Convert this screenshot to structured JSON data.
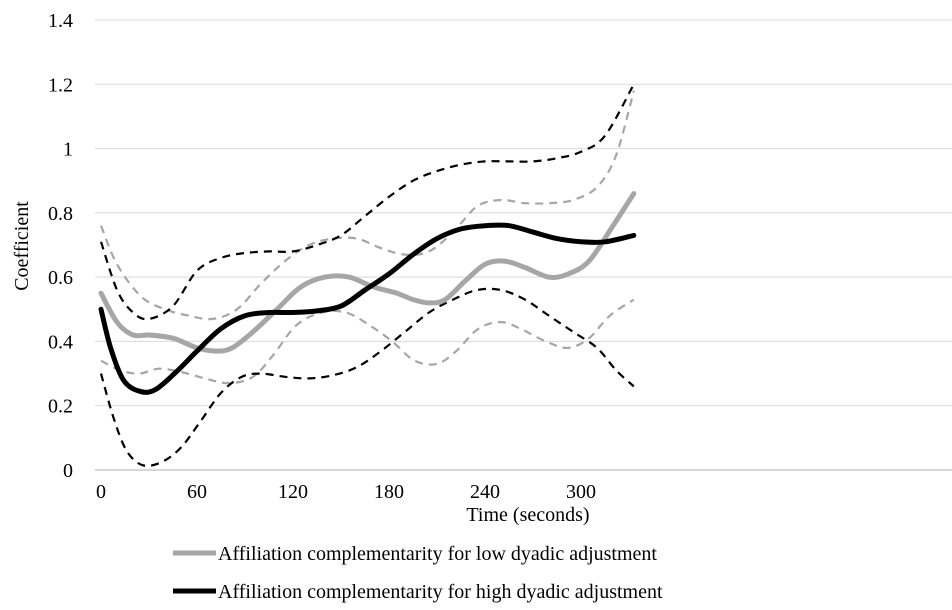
{
  "chart_data": {
    "type": "line",
    "xlabel": "Time (seconds)",
    "ylabel": "Coefficient",
    "xlim": [
      0,
      330
    ],
    "ylim": [
      0,
      1.4
    ],
    "x_ticks": [
      "0",
      "60",
      "120",
      "180",
      "240",
      "300"
    ],
    "y_ticks": [
      "0",
      "0.2",
      "0.4",
      "0.6",
      "0.8",
      "1",
      "1.2",
      "1.4"
    ],
    "grid": "horizontal",
    "legend_position": "bottom",
    "series": [
      {
        "name": "Affiliation complementarity for low dyadic adjustment",
        "color": "#a6a6a6",
        "style": "solid",
        "role": "estimate",
        "points": [
          [
            0,
            0.55
          ],
          [
            10,
            0.46
          ],
          [
            20,
            0.42
          ],
          [
            30,
            0.42
          ],
          [
            45,
            0.41
          ],
          [
            60,
            0.38
          ],
          [
            72,
            0.37
          ],
          [
            82,
            0.38
          ],
          [
            95,
            0.43
          ],
          [
            110,
            0.5
          ],
          [
            125,
            0.57
          ],
          [
            140,
            0.6
          ],
          [
            155,
            0.6
          ],
          [
            170,
            0.57
          ],
          [
            185,
            0.55
          ],
          [
            195,
            0.53
          ],
          [
            205,
            0.52
          ],
          [
            215,
            0.53
          ],
          [
            228,
            0.59
          ],
          [
            240,
            0.64
          ],
          [
            252,
            0.65
          ],
          [
            265,
            0.63
          ],
          [
            280,
            0.6
          ],
          [
            292,
            0.61
          ],
          [
            305,
            0.65
          ],
          [
            320,
            0.76
          ],
          [
            333,
            0.86
          ]
        ]
      },
      {
        "name": "Affiliation complementarity for high dyadic adjustment",
        "color": "#000000",
        "style": "solid",
        "role": "estimate",
        "points": [
          [
            0,
            0.5
          ],
          [
            6,
            0.38
          ],
          [
            14,
            0.28
          ],
          [
            24,
            0.245
          ],
          [
            34,
            0.25
          ],
          [
            48,
            0.31
          ],
          [
            60,
            0.37
          ],
          [
            75,
            0.44
          ],
          [
            90,
            0.48
          ],
          [
            105,
            0.49
          ],
          [
            120,
            0.49
          ],
          [
            135,
            0.495
          ],
          [
            150,
            0.51
          ],
          [
            165,
            0.56
          ],
          [
            180,
            0.61
          ],
          [
            195,
            0.67
          ],
          [
            210,
            0.72
          ],
          [
            225,
            0.75
          ],
          [
            240,
            0.76
          ],
          [
            255,
            0.76
          ],
          [
            270,
            0.74
          ],
          [
            285,
            0.72
          ],
          [
            300,
            0.71
          ],
          [
            315,
            0.71
          ],
          [
            333,
            0.73
          ]
        ]
      },
      {
        "name": "",
        "color": "#a6a6a6",
        "style": "dashed",
        "role": "low upper bound",
        "points": [
          [
            0,
            0.76
          ],
          [
            10,
            0.64
          ],
          [
            25,
            0.54
          ],
          [
            40,
            0.5
          ],
          [
            55,
            0.48
          ],
          [
            70,
            0.47
          ],
          [
            85,
            0.5
          ],
          [
            100,
            0.58
          ],
          [
            115,
            0.65
          ],
          [
            130,
            0.7
          ],
          [
            145,
            0.72
          ],
          [
            160,
            0.72
          ],
          [
            175,
            0.69
          ],
          [
            190,
            0.67
          ],
          [
            205,
            0.68
          ],
          [
            220,
            0.74
          ],
          [
            235,
            0.82
          ],
          [
            250,
            0.84
          ],
          [
            265,
            0.83
          ],
          [
            280,
            0.83
          ],
          [
            295,
            0.84
          ],
          [
            310,
            0.88
          ],
          [
            322,
            0.98
          ],
          [
            333,
            1.18
          ]
        ]
      },
      {
        "name": "",
        "color": "#a6a6a6",
        "style": "dashed",
        "role": "low lower bound",
        "points": [
          [
            0,
            0.34
          ],
          [
            12,
            0.31
          ],
          [
            24,
            0.3
          ],
          [
            36,
            0.315
          ],
          [
            50,
            0.305
          ],
          [
            65,
            0.285
          ],
          [
            80,
            0.27
          ],
          [
            95,
            0.29
          ],
          [
            108,
            0.36
          ],
          [
            122,
            0.45
          ],
          [
            138,
            0.49
          ],
          [
            153,
            0.49
          ],
          [
            168,
            0.45
          ],
          [
            182,
            0.4
          ],
          [
            196,
            0.34
          ],
          [
            210,
            0.33
          ],
          [
            222,
            0.37
          ],
          [
            236,
            0.44
          ],
          [
            250,
            0.46
          ],
          [
            262,
            0.44
          ],
          [
            278,
            0.4
          ],
          [
            292,
            0.38
          ],
          [
            305,
            0.41
          ],
          [
            318,
            0.48
          ],
          [
            333,
            0.53
          ]
        ]
      },
      {
        "name": "",
        "color": "#000000",
        "style": "dashed",
        "role": "high upper bound",
        "points": [
          [
            0,
            0.71
          ],
          [
            10,
            0.56
          ],
          [
            20,
            0.49
          ],
          [
            30,
            0.47
          ],
          [
            45,
            0.51
          ],
          [
            60,
            0.62
          ],
          [
            75,
            0.66
          ],
          [
            90,
            0.675
          ],
          [
            105,
            0.68
          ],
          [
            120,
            0.68
          ],
          [
            135,
            0.7
          ],
          [
            150,
            0.73
          ],
          [
            165,
            0.79
          ],
          [
            180,
            0.85
          ],
          [
            195,
            0.9
          ],
          [
            210,
            0.93
          ],
          [
            225,
            0.95
          ],
          [
            240,
            0.96
          ],
          [
            255,
            0.96
          ],
          [
            270,
            0.96
          ],
          [
            285,
            0.97
          ],
          [
            300,
            0.99
          ],
          [
            315,
            1.04
          ],
          [
            333,
            1.2
          ]
        ]
      },
      {
        "name": "",
        "color": "#000000",
        "style": "dashed",
        "role": "high lower bound",
        "points": [
          [
            0,
            0.3
          ],
          [
            8,
            0.16
          ],
          [
            16,
            0.06
          ],
          [
            26,
            0.015
          ],
          [
            38,
            0.025
          ],
          [
            50,
            0.07
          ],
          [
            62,
            0.15
          ],
          [
            75,
            0.24
          ],
          [
            88,
            0.29
          ],
          [
            100,
            0.3
          ],
          [
            115,
            0.29
          ],
          [
            130,
            0.285
          ],
          [
            145,
            0.295
          ],
          [
            160,
            0.32
          ],
          [
            175,
            0.37
          ],
          [
            190,
            0.43
          ],
          [
            205,
            0.49
          ],
          [
            220,
            0.53
          ],
          [
            235,
            0.56
          ],
          [
            250,
            0.56
          ],
          [
            265,
            0.53
          ],
          [
            280,
            0.48
          ],
          [
            295,
            0.43
          ],
          [
            310,
            0.38
          ],
          [
            322,
            0.31
          ],
          [
            333,
            0.26
          ]
        ]
      }
    ],
    "legend": [
      {
        "label": "Affiliation complementarity for low dyadic adjustment",
        "color": "#a6a6a6"
      },
      {
        "label": "Affiliation complementarity for high dyadic adjustment",
        "color": "#000000"
      }
    ]
  }
}
